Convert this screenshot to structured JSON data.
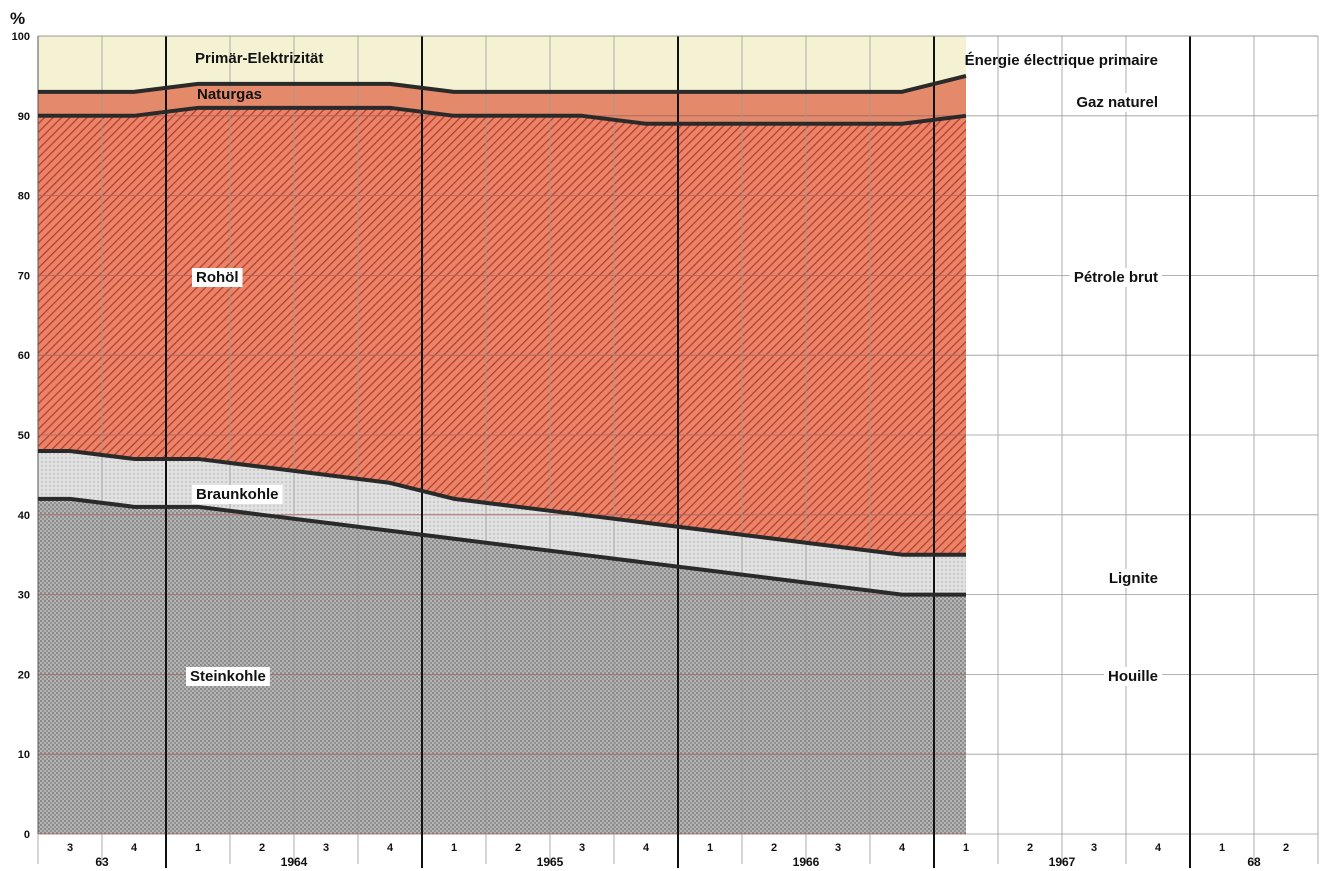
{
  "chart_data": {
    "type": "area",
    "stacked": true,
    "y_unit_label": "%",
    "ylim": [
      0,
      100
    ],
    "y_ticks": [
      "0",
      "10",
      "20",
      "30",
      "40",
      "50",
      "60",
      "70",
      "80",
      "90",
      "100"
    ],
    "grid": true,
    "quarters": [
      "3",
      "4",
      "1",
      "2",
      "3",
      "4",
      "1",
      "2",
      "3",
      "4",
      "1",
      "2",
      "3",
      "4",
      "1",
      "2",
      "3",
      "4",
      "1",
      "2"
    ],
    "years": [
      "63",
      "1964",
      "1965",
      "1966",
      "1967",
      "68"
    ],
    "x": [
      "1963-Q3",
      "1963-Q4",
      "1964-Q1",
      "1964-Q2",
      "1964-Q3",
      "1964-Q4",
      "1965-Q1",
      "1965-Q2",
      "1965-Q3",
      "1965-Q4",
      "1966-Q1",
      "1966-Q2",
      "1966-Q3",
      "1966-Q4",
      "1967-Q1"
    ],
    "boundaries": {
      "steinkohle_top": [
        42,
        41,
        41,
        40,
        39,
        38,
        37,
        36,
        35,
        34,
        33,
        32,
        31,
        30,
        30
      ],
      "braunkohle_top": [
        48,
        47,
        47,
        46,
        45,
        44,
        42,
        41,
        40,
        39,
        38,
        37,
        36,
        35,
        35
      ],
      "rohoel_top": [
        90,
        90,
        91,
        91,
        91,
        91,
        90,
        90,
        90,
        89,
        89,
        89,
        89,
        89,
        90
      ],
      "naturgas_top": [
        93,
        93,
        94,
        94,
        94,
        94,
        93,
        93,
        93,
        93,
        93,
        93,
        93,
        93,
        95
      ],
      "primaer_top": [
        100,
        100,
        100,
        100,
        100,
        100,
        100,
        100,
        100,
        100,
        100,
        100,
        100,
        100,
        100
      ]
    },
    "series": [
      {
        "name": "Steinkohle",
        "name_fr": "Houille",
        "values": [
          42,
          41,
          41,
          40,
          39,
          38,
          37,
          36,
          35,
          34,
          33,
          32,
          31,
          30,
          30
        ],
        "color": "#9a9a9a"
      },
      {
        "name": "Braunkohle",
        "name_fr": "Lignite",
        "values": [
          6,
          6,
          6,
          6,
          6,
          6,
          5,
          5,
          5,
          5,
          5,
          5,
          5,
          5,
          5
        ],
        "color": "#d8d8d8"
      },
      {
        "name": "Rohöl",
        "name_fr": "Pétrole brut",
        "values": [
          42,
          43,
          44,
          45,
          46,
          47,
          48,
          49,
          50,
          50,
          51,
          52,
          53,
          54,
          55
        ],
        "color": "#d94a2a"
      },
      {
        "name": "Naturgas",
        "name_fr": "Gaz naturel",
        "values": [
          3,
          3,
          3,
          3,
          3,
          3,
          3,
          3,
          3,
          4,
          4,
          4,
          4,
          4,
          5
        ],
        "color": "#e87a5a"
      },
      {
        "name": "Primär-Elektrizität",
        "name_fr": "Énergie électrique primaire",
        "values": [
          7,
          7,
          6,
          6,
          6,
          6,
          7,
          7,
          7,
          7,
          7,
          7,
          7,
          7,
          5
        ],
        "color": "#f3f1cf"
      }
    ],
    "labels": {
      "de": {
        "primaer": "Primär-Elektrizität",
        "naturgas": "Naturgas",
        "rohoel": "Rohöl",
        "braunkohle": "Braunkohle",
        "steinkohle": "Steinkohle"
      },
      "fr": {
        "primaer": "Énergie électrique primaire",
        "naturgas": "Gaz naturel",
        "rohoel": "Pétrole brut",
        "braunkohle": "Lignite",
        "steinkohle": "Houille"
      }
    },
    "colors": {
      "grid": "#9a9a9a",
      "year_divider": "#111111",
      "boundary": "#2a2a2a",
      "red_grid": "#c0392b"
    }
  }
}
